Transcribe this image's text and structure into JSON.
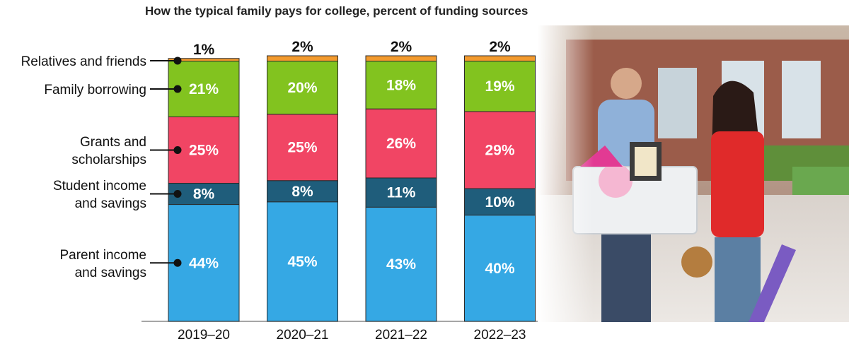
{
  "chart_data": {
    "type": "bar",
    "stacked": true,
    "title": "How the typical family pays for college, percent of funding sources",
    "categories": [
      "2019–20",
      "2020–21",
      "2021–22",
      "2022–23"
    ],
    "series": [
      {
        "name": "Parent income and savings",
        "legend_lines": [
          "Parent income",
          "and savings"
        ],
        "values": [
          44,
          45,
          43,
          40
        ],
        "color": "#35a8e4"
      },
      {
        "name": "Student income and savings",
        "legend_lines": [
          "Student income",
          "and savings"
        ],
        "values": [
          8,
          8,
          11,
          10
        ],
        "color": "#1f5d7b"
      },
      {
        "name": "Grants and scholarships",
        "legend_lines": [
          "Grants and",
          "scholarships"
        ],
        "values": [
          25,
          25,
          26,
          29
        ],
        "color": "#f14564"
      },
      {
        "name": "Family borrowing",
        "legend_lines": [
          "Family borrowing"
        ],
        "values": [
          21,
          20,
          18,
          19
        ],
        "color": "#82c31f"
      },
      {
        "name": "Relatives and friends",
        "legend_lines": [
          "Relatives and friends"
        ],
        "values": [
          1,
          2,
          2,
          2
        ],
        "color": "#f39a2d"
      }
    ],
    "ylim": [
      0,
      100
    ],
    "grid": false,
    "legend_position": "left"
  }
}
